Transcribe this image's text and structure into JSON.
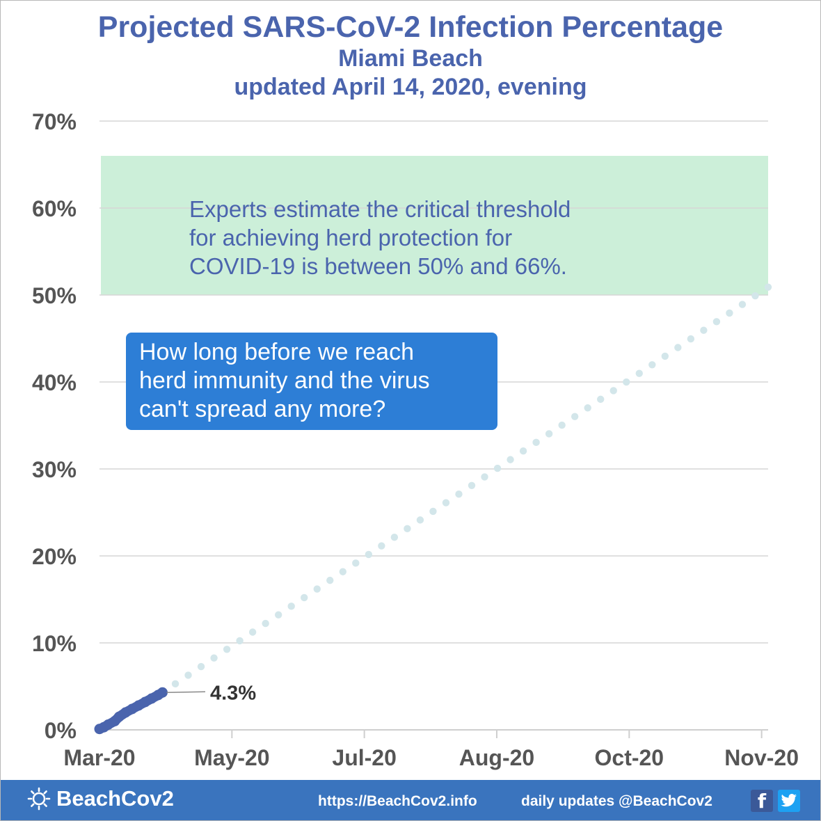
{
  "titles": {
    "main": "Projected SARS-CoV-2 Infection Percentage",
    "location": "Miami Beach",
    "updated": "updated April 14, 2020, evening"
  },
  "chart_data": {
    "type": "line",
    "title": "Projected SARS-CoV-2 Infection Percentage",
    "subtitle": "Miami Beach",
    "xlabel": "",
    "ylabel": "",
    "x_ticks": [
      "Mar-20",
      "May-20",
      "Jul-20",
      "Aug-20",
      "Oct-20",
      "Nov-20"
    ],
    "x_tick_dates": [
      "2020-03-01",
      "2020-05-01",
      "2020-07-01",
      "2020-08-31",
      "2020-10-31",
      "2020-12-31"
    ],
    "x_range": [
      "2020-03-01",
      "2021-01-03"
    ],
    "y_ticks": [
      "0%",
      "10%",
      "20%",
      "30%",
      "40%",
      "50%",
      "60%",
      "70%"
    ],
    "ylim": [
      0,
      70
    ],
    "grid": "horizontal",
    "band": {
      "from": 50,
      "to": 66,
      "color": "#ccefd9"
    },
    "series": [
      {
        "style": "solid markers",
        "color": "#4a64ad",
        "x": [
          "2020-03-01",
          "2020-03-03",
          "2020-03-05",
          "2020-03-08",
          "2020-03-10",
          "2020-03-13",
          "2020-03-16",
          "2020-03-19",
          "2020-03-22",
          "2020-03-25",
          "2020-03-28",
          "2020-03-30"
        ],
        "y": [
          0.1,
          0.3,
          0.6,
          1.0,
          1.5,
          2.0,
          2.4,
          2.8,
          3.2,
          3.6,
          4.0,
          4.3
        ]
      },
      {
        "style": "projection dots",
        "color": "#d3e6ea",
        "x": [
          "2020-03-30",
          "2021-01-03"
        ],
        "y": [
          4.3,
          50.9
        ]
      }
    ],
    "annotations": {
      "last_value_label": "4.3%",
      "band_note": [
        "Experts estimate the critical threshold",
        "for achieving herd protection for",
        "COVID-19 is between 50% and 66%."
      ],
      "callout": [
        "How long before we reach",
        "herd immunity and the virus",
        "can't spread any more?"
      ]
    },
    "colors": {
      "axis_text": "#555555",
      "grid": "#d6d6d6",
      "title": "#4a64ad",
      "callout_bg": "#2d7ed6"
    }
  },
  "footer": {
    "brand": "BeachCov2",
    "url": "https://BeachCov2.info",
    "updates": "daily updates @BeachCov2",
    "icons": [
      "sun-logo-icon",
      "facebook-icon",
      "twitter-icon"
    ],
    "background": "#3a74be"
  }
}
